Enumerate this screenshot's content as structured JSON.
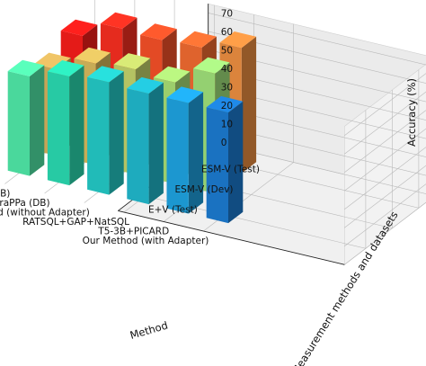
{
  "chart_data": {
    "type": "bar3d",
    "title": "",
    "xlabel": "Method",
    "ylabel": "Measurement methods and datasets",
    "zlabel": "Accuracy (%)",
    "zlim": [
      0,
      75
    ],
    "zticks": [
      0,
      10,
      20,
      30,
      40,
      50,
      60,
      70
    ],
    "methods": [
      "Our Method (with Adapter)",
      "T5-3B+PICARD",
      "RATSQL+GAP+NatSQL",
      "Our Method (without Adapter)",
      "SmBoP+GraPPa (DB)",
      "RaSaP+ELECTRA (DB)"
    ],
    "datasets": [
      "E+V (Test)",
      "ESM-V (Dev)",
      "ESM-V (Test)"
    ],
    "values": [
      [
        60,
        null,
        null
      ],
      [
        60,
        65,
        68
      ],
      [
        60,
        55,
        63
      ],
      [
        61,
        57,
        62
      ],
      [
        59,
        55,
        63
      ],
      [
        54,
        47,
        54
      ]
    ],
    "colors": [
      [
        "#1c7bd0",
        "#8fe08c",
        "#e8984c"
      ],
      [
        "#1ea2e0",
        "#9fe07a",
        "#ec8e40"
      ],
      [
        "#20b8cc",
        "#a8dd74",
        "#f06a30"
      ],
      [
        "#24c9c6",
        "#c2d26a",
        "#f45028"
      ],
      [
        "#2ad9b0",
        "#d6b95c",
        "#f62e20"
      ],
      [
        "#50e8a8",
        "#d6b05c",
        "#f51d1a"
      ]
    ]
  }
}
